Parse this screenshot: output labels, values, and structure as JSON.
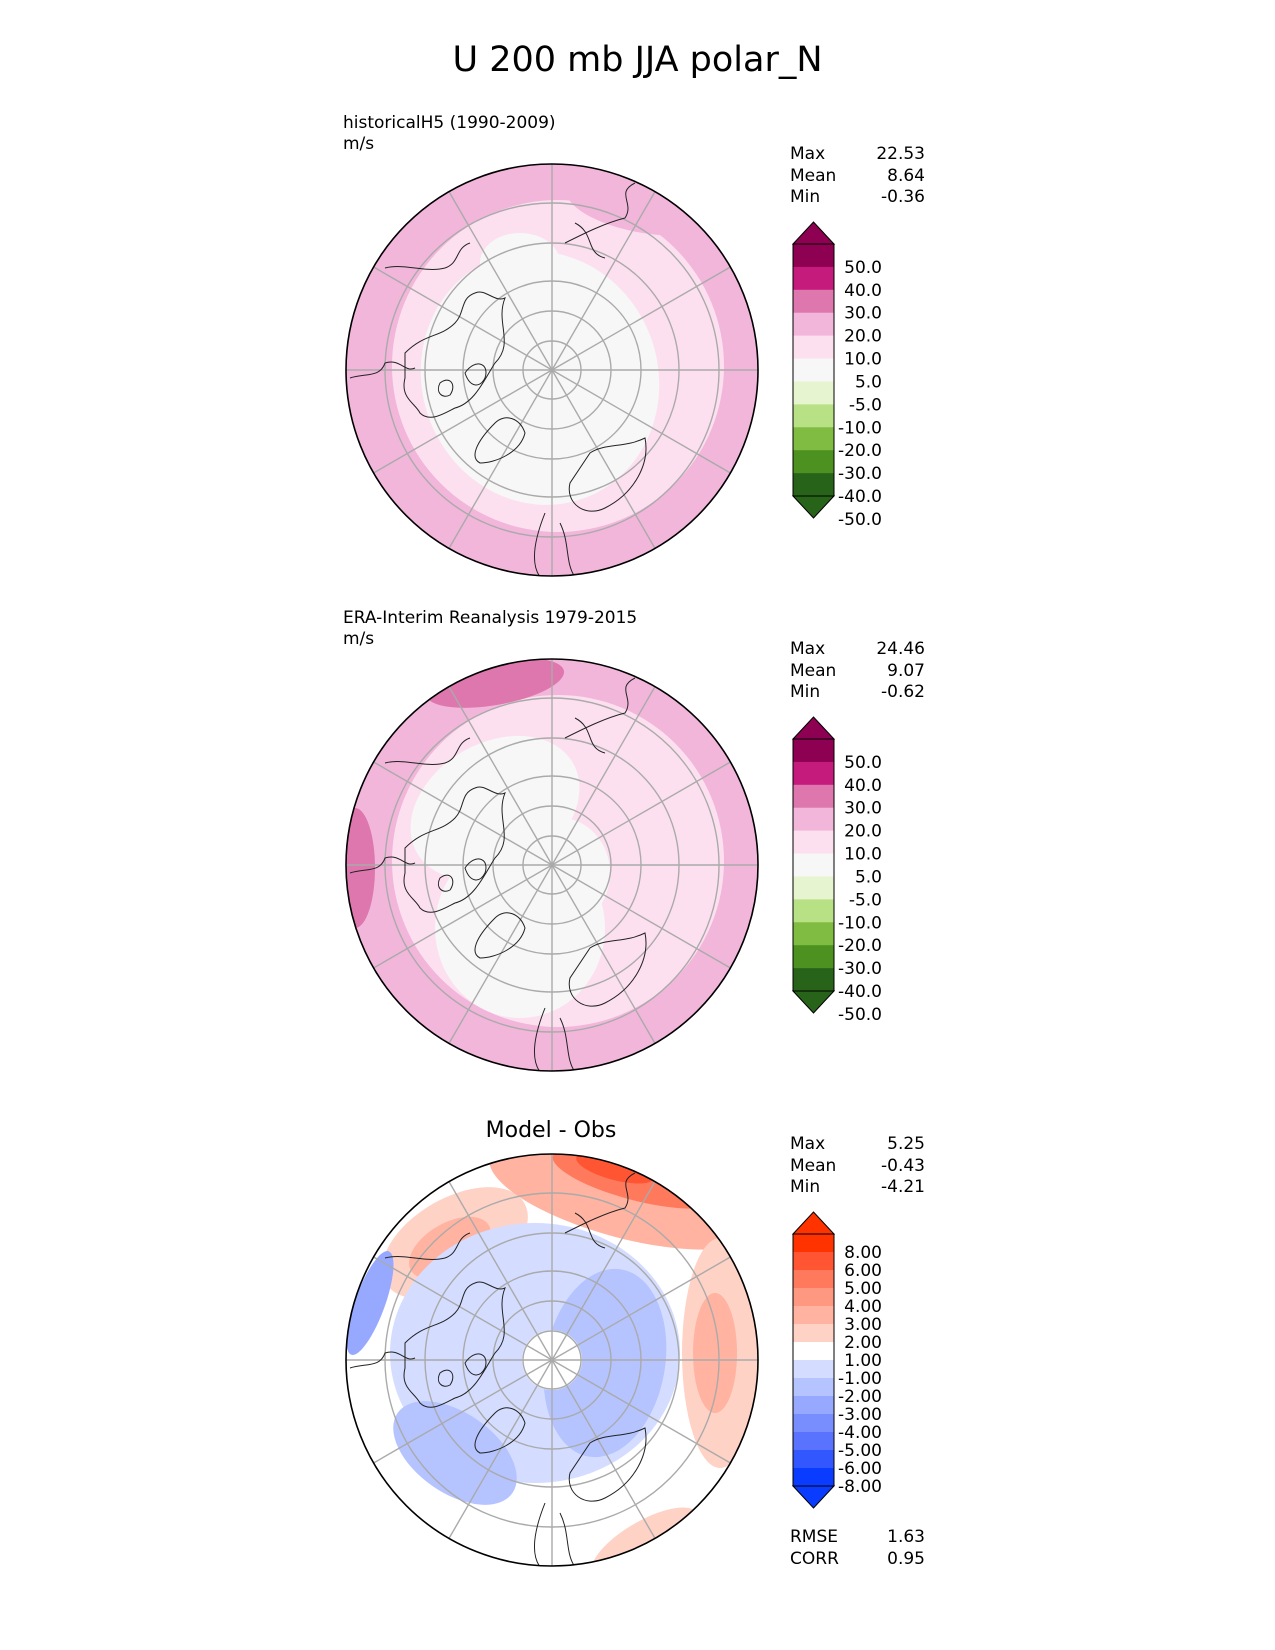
{
  "title": "U 200 mb JJA polar_N",
  "panels": [
    {
      "title": "historicalH5 (1990-2009)",
      "units": "m/s",
      "stats": [
        {
          "label": "Max",
          "value": "22.53"
        },
        {
          "label": "Mean",
          "value": "8.64"
        },
        {
          "label": "Min",
          "value": "-0.36"
        }
      ],
      "colorbar": {
        "ticks": [
          "50.0",
          "40.0",
          "30.0",
          "20.0",
          "10.0",
          "5.0",
          "-5.0",
          "-10.0",
          "-20.0",
          "-30.0",
          "-40.0",
          "-50.0"
        ],
        "colors": [
          "#8e0152",
          "#c51b7d",
          "#de77ae",
          "#f1b6da",
          "#fde0ef",
          "#f7f7f7",
          "#e6f5d0",
          "#b8e186",
          "#7fbc41",
          "#4d9221",
          "#276419"
        ]
      }
    },
    {
      "title": "ERA-Interim Reanalysis 1979-2015",
      "units": "m/s",
      "stats": [
        {
          "label": "Max",
          "value": "24.46"
        },
        {
          "label": "Mean",
          "value": "9.07"
        },
        {
          "label": "Min",
          "value": "-0.62"
        }
      ],
      "colorbar": {
        "ticks": [
          "50.0",
          "40.0",
          "30.0",
          "20.0",
          "10.0",
          "5.0",
          "-5.0",
          "-10.0",
          "-20.0",
          "-30.0",
          "-40.0",
          "-50.0"
        ],
        "colors": [
          "#8e0152",
          "#c51b7d",
          "#de77ae",
          "#f1b6da",
          "#fde0ef",
          "#f7f7f7",
          "#e6f5d0",
          "#b8e186",
          "#7fbc41",
          "#4d9221",
          "#276419"
        ]
      }
    },
    {
      "title": "Model - Obs",
      "units": "",
      "stats": [
        {
          "label": "Max",
          "value": "5.25"
        },
        {
          "label": "Mean",
          "value": "-0.43"
        },
        {
          "label": "Min",
          "value": "-4.21"
        }
      ],
      "metrics": [
        {
          "label": "RMSE",
          "value": "1.63"
        },
        {
          "label": "CORR",
          "value": "0.95"
        }
      ],
      "colorbar": {
        "ticks": [
          "8.00",
          "6.00",
          "5.00",
          "4.00",
          "3.00",
          "2.00",
          "1.00",
          "-1.00",
          "-2.00",
          "-3.00",
          "-4.00",
          "-5.00",
          "-6.00",
          "-8.00"
        ],
        "colors": [
          "#ff3300",
          "#ff5533",
          "#ff7a5c",
          "#ff9880",
          "#ffb3a0",
          "#ffd2c6",
          "#ffffff",
          "#d4ddff",
          "#b5c3ff",
          "#97a9ff",
          "#788eff",
          "#5a73ff",
          "#3357ff",
          "#0a3cff"
        ]
      }
    }
  ],
  "chart_data": [
    {
      "type": "heatmap",
      "title": "historicalH5 (1990-2009)",
      "ylabel": "m/s",
      "projection": "north polar stereographic",
      "levels": [
        -50,
        -40,
        -30,
        -20,
        -10,
        -5,
        5,
        10,
        20,
        30,
        40,
        50
      ],
      "max": 22.53,
      "mean": 8.64,
      "min": -0.36
    },
    {
      "type": "heatmap",
      "title": "ERA-Interim Reanalysis 1979-2015",
      "ylabel": "m/s",
      "projection": "north polar stereographic",
      "levels": [
        -50,
        -40,
        -30,
        -20,
        -10,
        -5,
        5,
        10,
        20,
        30,
        40,
        50
      ],
      "max": 24.46,
      "mean": 9.07,
      "min": -0.62
    },
    {
      "type": "heatmap",
      "title": "Model - Obs",
      "projection": "north polar stereographic",
      "levels": [
        -8,
        -6,
        -5,
        -4,
        -3,
        -2,
        -1,
        1,
        2,
        3,
        4,
        5,
        6,
        8
      ],
      "max": 5.25,
      "mean": -0.43,
      "min": -4.21,
      "rmse": 1.63,
      "corr": 0.95
    }
  ]
}
